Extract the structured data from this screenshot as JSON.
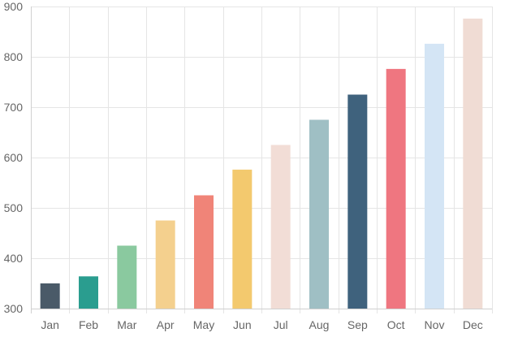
{
  "chart_data": {
    "type": "bar",
    "title": "",
    "xlabel": "",
    "ylabel": "",
    "categories": [
      "Jan",
      "Feb",
      "Mar",
      "Apr",
      "May",
      "Jun",
      "Jul",
      "Aug",
      "Sep",
      "Oct",
      "Nov",
      "Dec"
    ],
    "values": [
      350,
      364,
      425,
      475,
      525,
      576,
      625,
      675,
      725,
      776,
      826,
      876
    ],
    "colors": [
      "#4a5a68",
      "#2a9d8f",
      "#8ac99f",
      "#f4d08e",
      "#f08478",
      "#f3c96e",
      "#f2ddd6",
      "#9fbfc4",
      "#3f627d",
      "#ef7680",
      "#d4e5f5",
      "#f0dcd4"
    ],
    "ylim": [
      300,
      900
    ],
    "yticks": [
      300,
      400,
      500,
      600,
      700,
      800,
      900
    ],
    "grid": true,
    "legend": "none"
  }
}
